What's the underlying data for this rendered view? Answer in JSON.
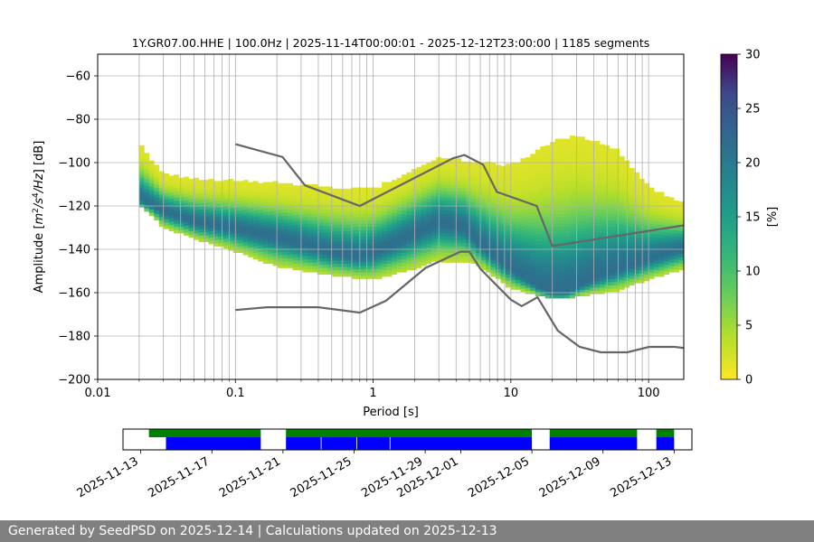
{
  "chart_data": [
    {
      "type": "heatmap",
      "title": "1Y.GR07.00.HHE | 100.0Hz | 2025-11-14T00:00:01 - 2025-12-12T23:00:00 | 1185 segments",
      "xlabel": "Period [s]",
      "ylabel": "Amplitude [$m^2/s^4/Hz$] [dB]",
      "xscale": "log",
      "xlim": [
        0.01,
        180
      ],
      "ylim": [
        -200,
        -50
      ],
      "xticks": [
        0.01,
        0.1,
        1,
        10,
        100
      ],
      "xtick_labels": [
        "0.01",
        "0.1",
        "1",
        "10",
        "100"
      ],
      "yticks": [
        -200,
        -180,
        -160,
        -140,
        -120,
        -100,
        -80,
        -60
      ],
      "ytick_labels": [
        "−200",
        "−180",
        "−160",
        "−140",
        "−120",
        "−100",
        "−80",
        "−60"
      ],
      "grid": true,
      "colormap": "viridis_r",
      "colorbar": {
        "label": "[%]",
        "range": [
          0,
          30
        ],
        "ticks": [
          0,
          5,
          10,
          15,
          20,
          25,
          30
        ]
      },
      "psd_mode": {
        "period": [
          0.02,
          0.03,
          0.05,
          0.1,
          0.2,
          0.3,
          0.5,
          0.8,
          1.2,
          2,
          3,
          4.5,
          6,
          8,
          12,
          16,
          20,
          25,
          30,
          40,
          60,
          100,
          180
        ],
        "amplitude": [
          -117,
          -123,
          -128,
          -131,
          -135,
          -138,
          -142,
          -144,
          -140,
          -133,
          -128,
          -130,
          -138,
          -145,
          -153,
          -158,
          -160,
          -160,
          -158,
          -154,
          -150,
          -145,
          -140
        ]
      },
      "psd_upper": {
        "period": [
          0.02,
          0.03,
          0.05,
          0.1,
          0.2,
          0.5,
          1,
          3,
          5,
          10,
          20,
          30,
          60,
          100,
          180
        ],
        "amplitude": [
          -92,
          -106,
          -108,
          -109,
          -110,
          -112,
          -113,
          -98,
          -100,
          -102,
          -91,
          -88,
          -95,
          -112,
          -120
        ]
      },
      "psd_lower": {
        "period": [
          0.02,
          0.03,
          0.05,
          0.1,
          0.2,
          0.5,
          1,
          2,
          3,
          5,
          10,
          20,
          30,
          60,
          100,
          180
        ],
        "amplitude": [
          -120,
          -131,
          -136,
          -142,
          -149,
          -153,
          -155,
          -150,
          -146,
          -146,
          -159,
          -164,
          -163,
          -160,
          -155,
          -150
        ]
      },
      "noise_models": {
        "color": "#666666",
        "high": {
          "period": [
            0.1,
            0.22,
            0.32,
            0.8,
            3.8,
            4.6,
            6.3,
            7.9,
            15.4,
            20,
            354.8
          ],
          "amplitude": [
            -91.5,
            -97.4,
            -110.5,
            -120,
            -98,
            -96.5,
            -101,
            -113.5,
            -120,
            -138.5,
            -126
          ]
        },
        "low": {
          "period": [
            0.1,
            0.17,
            0.4,
            0.8,
            1.24,
            2.4,
            4.3,
            5,
            6,
            10,
            12,
            15.6,
            21.9,
            31.6,
            45,
            70,
            101,
            154,
            328
          ],
          "amplitude": [
            -168,
            -166.7,
            -166.7,
            -169.2,
            -163.7,
            -148.6,
            -141.1,
            -141.1,
            -149,
            -163.2,
            -166.2,
            -162.1,
            -177.5,
            -185,
            -187.5,
            -187.5,
            -185,
            -185,
            -187.5
          ]
        }
      }
    },
    {
      "type": "timeline",
      "xtick_labels": [
        "2025-11-13",
        "2025-11-17",
        "2025-11-21",
        "2025-11-25",
        "2025-11-29",
        "2025-12-01",
        "2025-12-05",
        "2025-12-09",
        "2025-12-13"
      ],
      "xtick_dates": [
        "2025-11-13",
        "2025-11-17",
        "2025-11-21",
        "2025-11-25",
        "2025-11-29",
        "2025-12-01",
        "2025-12-05",
        "2025-12-09",
        "2025-12-13"
      ],
      "xlim": [
        "2025-11-12T00:00",
        "2025-12-14T00:00"
      ],
      "data_color": "#008000",
      "used_color": "#0000ff",
      "data_segments": [
        [
          "2025-11-13T11:00",
          "2025-11-19T18:00"
        ],
        [
          "2025-11-21T04:00",
          "2025-12-05T00:00"
        ],
        [
          "2025-12-06T00:00",
          "2025-12-10T22:00"
        ],
        [
          "2025-12-12T00:00",
          "2025-12-13T00:00"
        ]
      ],
      "used_segments": [
        [
          "2025-11-14T10:00",
          "2025-11-19T18:00"
        ],
        [
          "2025-11-21T04:00",
          "2025-11-23T03:00"
        ],
        [
          "2025-11-23T04:00",
          "2025-11-25T03:00"
        ],
        [
          "2025-11-25T04:00",
          "2025-11-27T00:00"
        ],
        [
          "2025-11-27T01:00",
          "2025-12-05T00:00"
        ],
        [
          "2025-12-06T00:00",
          "2025-12-10T22:00"
        ],
        [
          "2025-12-12T00:00",
          "2025-12-13T00:00"
        ]
      ]
    }
  ],
  "footer": {
    "text": "Generated by SeedPSD on 2025-12-14 | Calculations updated on 2025-12-13"
  }
}
